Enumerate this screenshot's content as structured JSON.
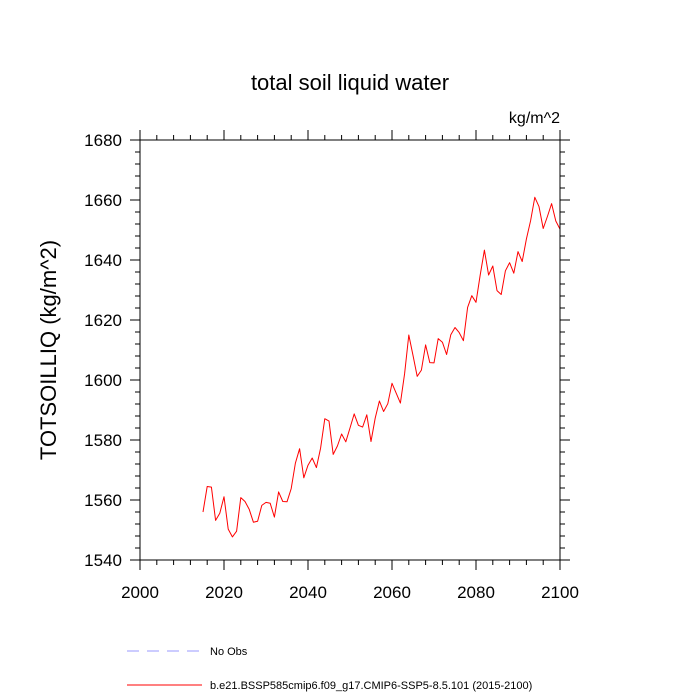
{
  "chart_data": {
    "type": "line",
    "title": "total soil liquid water",
    "units": "kg/m^2",
    "ylabel": "TOTSOILLIQ  (kg/m^2)",
    "xlabel": "",
    "xlim": [
      2000,
      2100
    ],
    "ylim": [
      1540,
      1680
    ],
    "xticks": [
      2000,
      2020,
      2040,
      2060,
      2080,
      2100
    ],
    "yticks": [
      1540,
      1560,
      1580,
      1600,
      1620,
      1640,
      1660,
      1680
    ],
    "grid": false,
    "legend_position": "bottom",
    "series": [
      {
        "name": "No Obs",
        "color": "#9999ff",
        "style": "dashed",
        "x": [],
        "y": []
      },
      {
        "name": "b.e21.BSSP585cmip6.f09_g17.CMIP6-SSP5-8.5.101 (2015-2100)",
        "color": "#ff0000",
        "style": "solid",
        "x": [
          2015,
          2016,
          2017,
          2018,
          2019,
          2020,
          2021,
          2022,
          2023,
          2024,
          2025,
          2026,
          2027,
          2028,
          2029,
          2030,
          2031,
          2032,
          2033,
          2034,
          2035,
          2036,
          2037,
          2038,
          2039,
          2040,
          2041,
          2042,
          2043,
          2044,
          2045,
          2046,
          2047,
          2048,
          2049,
          2050,
          2051,
          2052,
          2053,
          2054,
          2055,
          2056,
          2057,
          2058,
          2059,
          2060,
          2061,
          2062,
          2063,
          2064,
          2065,
          2066,
          2067,
          2068,
          2069,
          2070,
          2071,
          2072,
          2073,
          2074,
          2075,
          2076,
          2077,
          2078,
          2079,
          2080,
          2081,
          2082,
          2083,
          2084,
          2085,
          2086,
          2087,
          2088,
          2089,
          2090,
          2091,
          2092,
          2093,
          2094,
          2095,
          2096,
          2097,
          2098,
          2099,
          2100
        ],
        "y": [
          1556,
          1564.5,
          1564.3,
          1553.2,
          1555.6,
          1561.1,
          1550.3,
          1547.7,
          1549.6,
          1560.8,
          1559.5,
          1556.9,
          1552.6,
          1552.9,
          1558.2,
          1559.2,
          1558.9,
          1554.3,
          1562.7,
          1559.5,
          1559.4,
          1563.8,
          1572.3,
          1577.1,
          1567.4,
          1571.6,
          1574.0,
          1570.8,
          1577.3,
          1587.1,
          1586.3,
          1575.2,
          1578.0,
          1582.0,
          1579.4,
          1584.0,
          1588.7,
          1584.9,
          1584.3,
          1588.4,
          1579.5,
          1587.3,
          1593.0,
          1589.5,
          1592.1,
          1598.9,
          1595.6,
          1592.3,
          1602.1,
          1615.0,
          1608.2,
          1601.2,
          1603.3,
          1611.7,
          1605.8,
          1605.7,
          1613.8,
          1612.6,
          1608.5,
          1615.1,
          1617.5,
          1615.8,
          1613.1,
          1624.2,
          1628.1,
          1625.9,
          1635.0,
          1643.3,
          1635.0,
          1638.0,
          1629.8,
          1628.5,
          1636.4,
          1639.1,
          1635.6,
          1642.8,
          1639.5,
          1647.0,
          1653.1,
          1660.9,
          1657.8,
          1650.5,
          1654.5,
          1658.8,
          1653.0,
          1650.3
        ]
      }
    ]
  }
}
